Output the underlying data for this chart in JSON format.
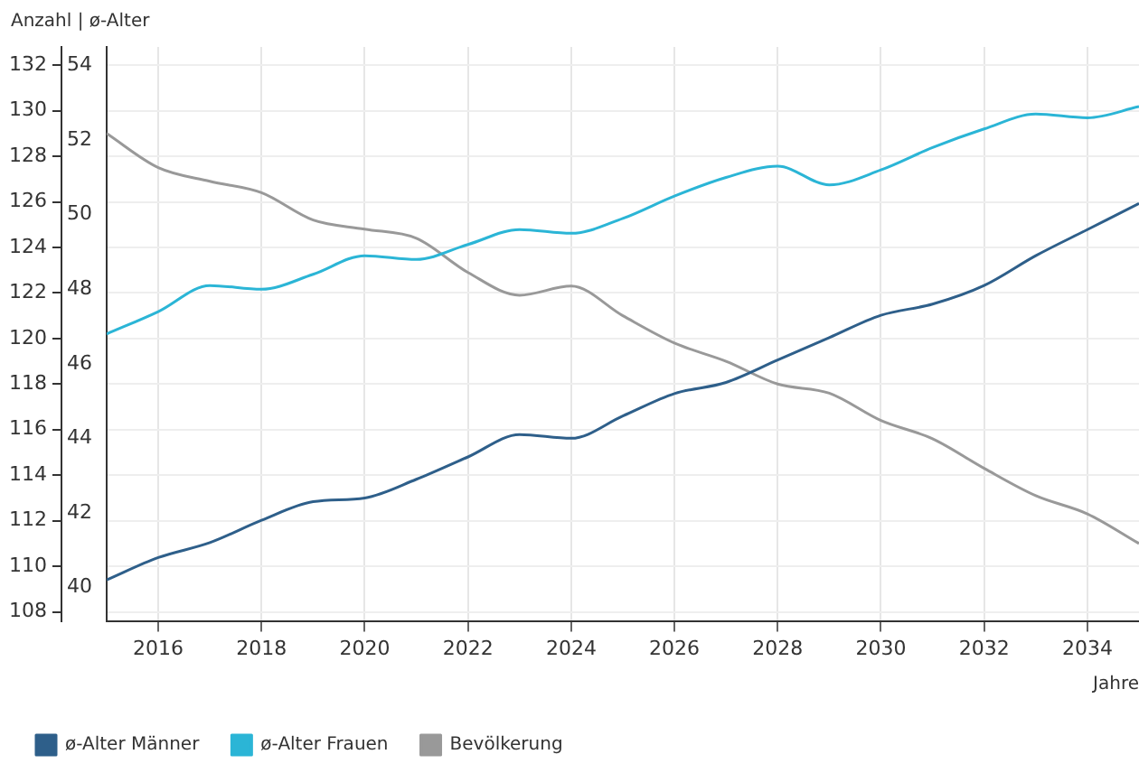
{
  "chart_data": {
    "type": "line",
    "annotations": [
      "Anzahl | ø-Alter"
    ],
    "xlabel": "Jahre",
    "x": [
      2015,
      2016,
      2017,
      2018,
      2019,
      2020,
      2021,
      2022,
      2023,
      2024,
      2025,
      2026,
      2027,
      2028,
      2029,
      2030,
      2031,
      2032,
      2033,
      2034,
      2035
    ],
    "series": [
      {
        "name": "ø-Alter Männer",
        "color": "#2e5f8a",
        "axis": "y2",
        "values": [
          40.2,
          40.8,
          41.2,
          41.8,
          42.3,
          42.4,
          42.9,
          43.5,
          44.1,
          44.0,
          44.6,
          45.2,
          45.5,
          46.1,
          46.7,
          47.3,
          47.6,
          48.1,
          48.9,
          49.6,
          50.3
        ]
      },
      {
        "name": "ø-Alter Frauen",
        "color": "#2bb5d6",
        "axis": "y2",
        "values": [
          46.8,
          47.4,
          48.1,
          48.0,
          48.4,
          48.9,
          48.8,
          49.2,
          49.6,
          49.5,
          49.9,
          50.5,
          51.0,
          51.3,
          50.8,
          51.2,
          51.8,
          52.3,
          52.7,
          52.6,
          52.9
        ]
      },
      {
        "name": "Bevölkerung",
        "color": "#999999",
        "axis": "y",
        "values": [
          129.0,
          127.5,
          126.9,
          126.4,
          125.2,
          124.8,
          124.4,
          122.9,
          121.9,
          122.3,
          121.0,
          119.8,
          119.0,
          118.0,
          117.6,
          116.4,
          115.6,
          114.3,
          113.1,
          112.3,
          111.0
        ]
      }
    ],
    "xlim": [
      2015,
      2035
    ],
    "xticks": [
      2016,
      2018,
      2020,
      2022,
      2024,
      2026,
      2028,
      2030,
      2032,
      2034
    ],
    "ylim": [
      107.6,
      132.8
    ],
    "yticks": [
      108,
      110,
      112,
      114,
      116,
      118,
      120,
      122,
      124,
      126,
      128,
      130,
      132
    ],
    "y2lim": [
      39.1,
      54.5
    ],
    "y2ticks": [
      40,
      42,
      44,
      46,
      48,
      50,
      52,
      54
    ],
    "grid": true,
    "legend": "bottom left",
    "marker": "none",
    "line_style": "solid"
  }
}
